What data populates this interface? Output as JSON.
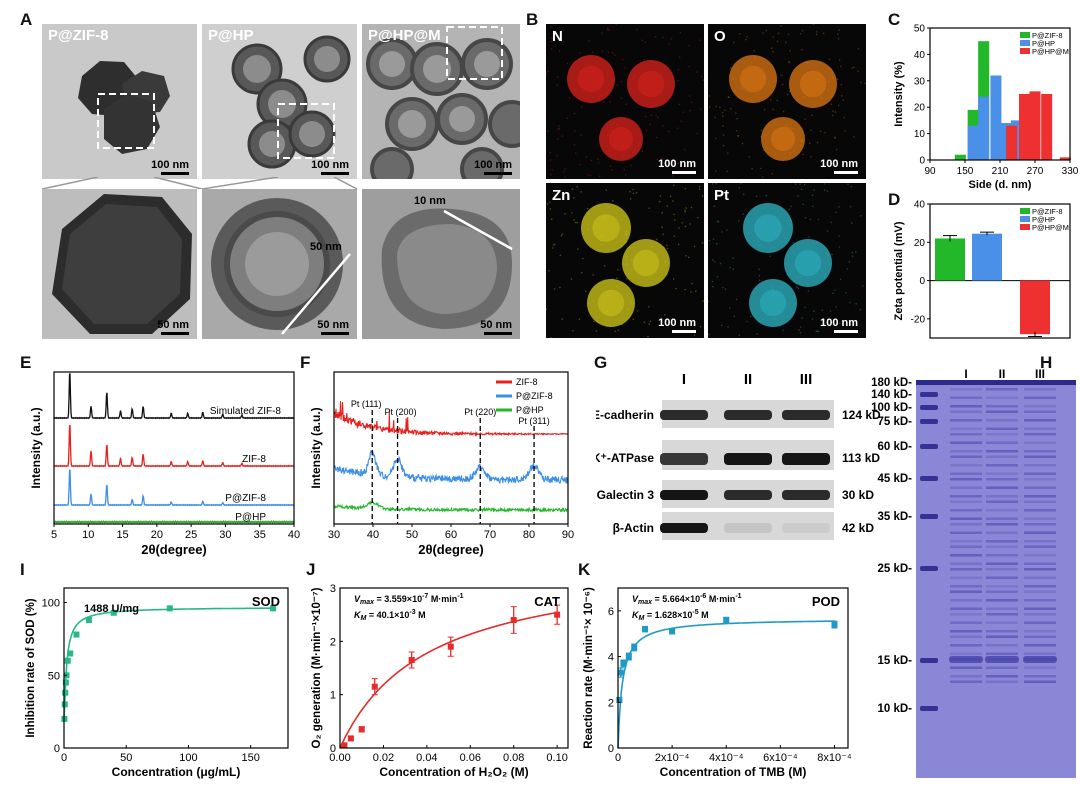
{
  "panel_labels": {
    "A": "A",
    "B": "B",
    "C": "C",
    "D": "D",
    "E": "E",
    "F": "F",
    "G": "G",
    "H": "H",
    "I": "I",
    "J": "J",
    "K": "K"
  },
  "panel_a": {
    "titles": [
      "P@ZIF-8",
      "P@HP",
      "P@HP@M"
    ],
    "scale_top": [
      "100 nm",
      "100 nm",
      "100 nm"
    ],
    "scale_bottom": [
      "50 nm",
      "50 nm",
      "50 nm"
    ],
    "annot_p_hp": "50 nm",
    "annot_p_hp_m": "10 nm"
  },
  "panel_b": {
    "elements": [
      "N",
      "O",
      "Zn",
      "Pt"
    ],
    "colors": [
      "#e0231c",
      "#e07a14",
      "#d6cc1a",
      "#2fb8c8"
    ],
    "scale": "100 nm"
  },
  "chart_data": [
    {
      "id": "C",
      "type": "bar",
      "xlabel": "Side (d. nm)",
      "ylabel": "Intensity (%)",
      "xlim": [
        90,
        330
      ],
      "ylim": [
        0,
        50
      ],
      "xticks": [
        90,
        150,
        210,
        270,
        330
      ],
      "yticks": [
        0,
        10,
        20,
        30,
        40,
        50
      ],
      "legend": "top-right",
      "series": [
        {
          "name": "P@ZIF-8",
          "color": "#22b82a",
          "x": [
            142,
            164,
            182
          ],
          "values": [
            2,
            19,
            45
          ]
        },
        {
          "name": "P@HP",
          "color": "#4a90e8",
          "x": [
            164,
            182,
            203,
            220,
            238
          ],
          "values": [
            13,
            24,
            32,
            14,
            15
          ]
        },
        {
          "name": "P@HP@M",
          "color": "#ee3030",
          "x": [
            230,
            252,
            270,
            290,
            322
          ],
          "values": [
            13,
            25,
            26,
            25,
            1
          ]
        }
      ]
    },
    {
      "id": "D",
      "type": "bar",
      "ylabel": "Zeta potential (mV)",
      "ylim": [
        -30,
        40
      ],
      "yticks": [
        -20,
        0,
        20,
        40
      ],
      "legend": "top-right",
      "series": [
        {
          "name": "P@ZIF-8",
          "color": "#22b82a",
          "value": 22,
          "err": 1.5
        },
        {
          "name": "P@HP",
          "color": "#4a90e8",
          "value": 24.5,
          "err": 0.8
        },
        {
          "name": "P@HP@M",
          "color": "#ee3030",
          "value": -28,
          "err": 1.2
        }
      ]
    },
    {
      "id": "E",
      "type": "line",
      "xlabel": "2θ(degree)",
      "ylabel": "Intensity (a.u.)",
      "xlim": [
        5,
        40
      ],
      "xticks": [
        5,
        10,
        15,
        20,
        25,
        30,
        35,
        40
      ],
      "series": [
        {
          "name": "Simulated ZIF-8",
          "color": "#111111",
          "peaks": [
            7.3,
            10.4,
            12.7,
            14.7,
            16.4,
            18.0,
            22.1,
            24.5,
            26.7,
            29.6,
            32.4
          ],
          "heights": [
            1.0,
            0.25,
            0.55,
            0.15,
            0.2,
            0.25,
            0.1,
            0.1,
            0.12,
            0.08,
            0.06
          ]
        },
        {
          "name": "ZIF-8",
          "color": "#e8201c",
          "peaks": [
            7.3,
            10.4,
            12.7,
            14.7,
            16.4,
            18.0,
            22.1,
            24.5,
            26.7,
            29.6,
            32.4
          ],
          "heights": [
            1.0,
            0.35,
            0.5,
            0.18,
            0.2,
            0.28,
            0.1,
            0.1,
            0.12,
            0.08,
            0.06
          ]
        },
        {
          "name": "P@ZIF-8",
          "color": "#3c8ee8",
          "peaks": [
            7.3,
            10.4,
            12.7,
            16.4,
            18.0,
            22.1,
            26.7,
            29.6
          ],
          "heights": [
            1.0,
            0.3,
            0.55,
            0.15,
            0.25,
            0.08,
            0.1,
            0.06
          ]
        },
        {
          "name": "P@HP",
          "color": "#2aa82a",
          "peaks": [],
          "heights": []
        }
      ]
    },
    {
      "id": "F",
      "type": "line",
      "xlabel": "2θ(degree)",
      "ylabel": "Intensity (a.u.)",
      "xlim": [
        30,
        90
      ],
      "xticks": [
        30,
        40,
        50,
        60,
        70,
        80,
        90
      ],
      "legend": "top-right",
      "series": [
        {
          "name": "ZIF-8",
          "color": "#e8201c"
        },
        {
          "name": "P@ZIF-8",
          "color": "#3c8ee8"
        },
        {
          "name": "P@HP",
          "color": "#22b82a"
        }
      ],
      "reference_lines": [
        {
          "label": "Pt (111)",
          "x": 39.8
        },
        {
          "label": "Pt (200)",
          "x": 46.3
        },
        {
          "label": "Pt (220)",
          "x": 67.5
        },
        {
          "label": "Pt (311)",
          "x": 81.3
        }
      ]
    },
    {
      "id": "I",
      "type": "scatter",
      "title": "SOD",
      "annotation": "1488 U/mg",
      "xlabel": "Concentration (μg/mL)",
      "ylabel": "Inhibition rate of SOD (%)",
      "xlim": [
        0,
        180
      ],
      "ylim": [
        0,
        110
      ],
      "xticks": [
        0,
        50,
        100,
        150
      ],
      "yticks": [
        0,
        50,
        100
      ],
      "color": "#27b88a",
      "x": [
        0.3,
        0.6,
        1,
        1.5,
        2,
        3,
        5,
        10,
        20,
        40,
        85,
        168
      ],
      "values": [
        20,
        30,
        38,
        45,
        50,
        60,
        65,
        78,
        88,
        93,
        96,
        96
      ]
    },
    {
      "id": "J",
      "type": "scatter",
      "title": "CAT",
      "annotation_1": "V",
      "annotation_1_sub": "max",
      "annotation_1_val": " = 3.559×10",
      "annotation_1_exp": "-7",
      "annotation_1_unit": " M·min",
      "annotation_1_unit_exp": "-1",
      "annotation_2": "K",
      "annotation_2_sub": "M",
      "annotation_2_val": " = 40.1×10",
      "annotation_2_exp": "-3",
      "annotation_2_unit": " M",
      "xlabel": "Concentration of H₂O₂ (M)",
      "ylabel": "O₂ generation (M·min⁻¹×10⁻⁷)",
      "xlim": [
        0,
        0.105
      ],
      "ylim": [
        0,
        3
      ],
      "xticks": [
        0.0,
        0.02,
        0.04,
        0.06,
        0.08,
        0.1
      ],
      "xtick_labels": [
        "0.00",
        "0.02",
        "0.04",
        "0.06",
        "0.08",
        "0.10"
      ],
      "yticks": [
        0,
        1,
        2,
        3
      ],
      "color": "#e82a2a",
      "x": [
        0.002,
        0.005,
        0.01,
        0.016,
        0.033,
        0.051,
        0.08,
        0.1
      ],
      "values": [
        0.05,
        0.18,
        0.35,
        1.15,
        1.65,
        1.9,
        2.4,
        2.5
      ],
      "errors": [
        0.02,
        0.04,
        0.05,
        0.15,
        0.15,
        0.18,
        0.25,
        0.18
      ]
    },
    {
      "id": "K",
      "type": "scatter",
      "title": "POD",
      "annotation_1": "V",
      "annotation_1_sub": "max",
      "annotation_1_val": " = 5.664×10",
      "annotation_1_exp": "-6",
      "annotation_1_unit": " M·min",
      "annotation_1_unit_exp": "-1",
      "annotation_2": "K",
      "annotation_2_sub": "M",
      "annotation_2_val": " = 1.628×10",
      "annotation_2_exp": "-5",
      "annotation_2_unit": " M",
      "xlabel": "Concentration of TMB (M)",
      "ylabel": "Reaction rate (M·min⁻¹× 10⁻⁶)",
      "xlim": [
        0,
        0.00085
      ],
      "ylim": [
        0,
        7
      ],
      "xtick_labels": [
        "0",
        "2x10⁻⁴",
        "4x10⁻⁴",
        "6x10⁻⁴",
        "8x10⁻⁴"
      ],
      "xticks": [
        0,
        0.0002,
        0.0004,
        0.0006,
        0.0008
      ],
      "yticks": [
        0,
        2,
        4,
        6
      ],
      "color": "#1f9ac6",
      "x": [
        5e-06,
        1e-05,
        2e-05,
        4e-05,
        6e-05,
        0.0001,
        0.0002,
        0.0004,
        0.0008
      ],
      "values": [
        2.1,
        3.3,
        3.7,
        4.0,
        4.4,
        5.2,
        5.1,
        5.6,
        5.4
      ],
      "errors": [
        0.1,
        0.2,
        0.15,
        0.15,
        0.15,
        0.12,
        0.1,
        0.12,
        0.15
      ]
    }
  ],
  "panel_g": {
    "lanes": [
      "I",
      "II",
      "III"
    ],
    "rows": [
      {
        "label": "E-cadherin",
        "mw": "124 kD",
        "intensity": [
          0.85,
          0.85,
          0.85
        ]
      },
      {
        "label": "Na⁺/K⁺-ATPase",
        "mw": "113 kD",
        "intensity": [
          0.8,
          0.95,
          0.95
        ]
      },
      {
        "label": "Galectin 3",
        "mw": "30 kD",
        "intensity": [
          0.95,
          0.85,
          0.85
        ]
      },
      {
        "label": "β-Actin",
        "mw": "42 kD",
        "intensity": [
          0.95,
          0.15,
          0.12
        ]
      }
    ]
  },
  "panel_h": {
    "lanes": [
      "I",
      "II",
      "III"
    ],
    "markers": [
      "180 kD",
      "140 kD",
      "100 kD",
      "75 kD",
      "60 kD",
      "45 kD",
      "35 kD",
      "25 kD",
      "15 kD",
      "10 kD"
    ]
  }
}
